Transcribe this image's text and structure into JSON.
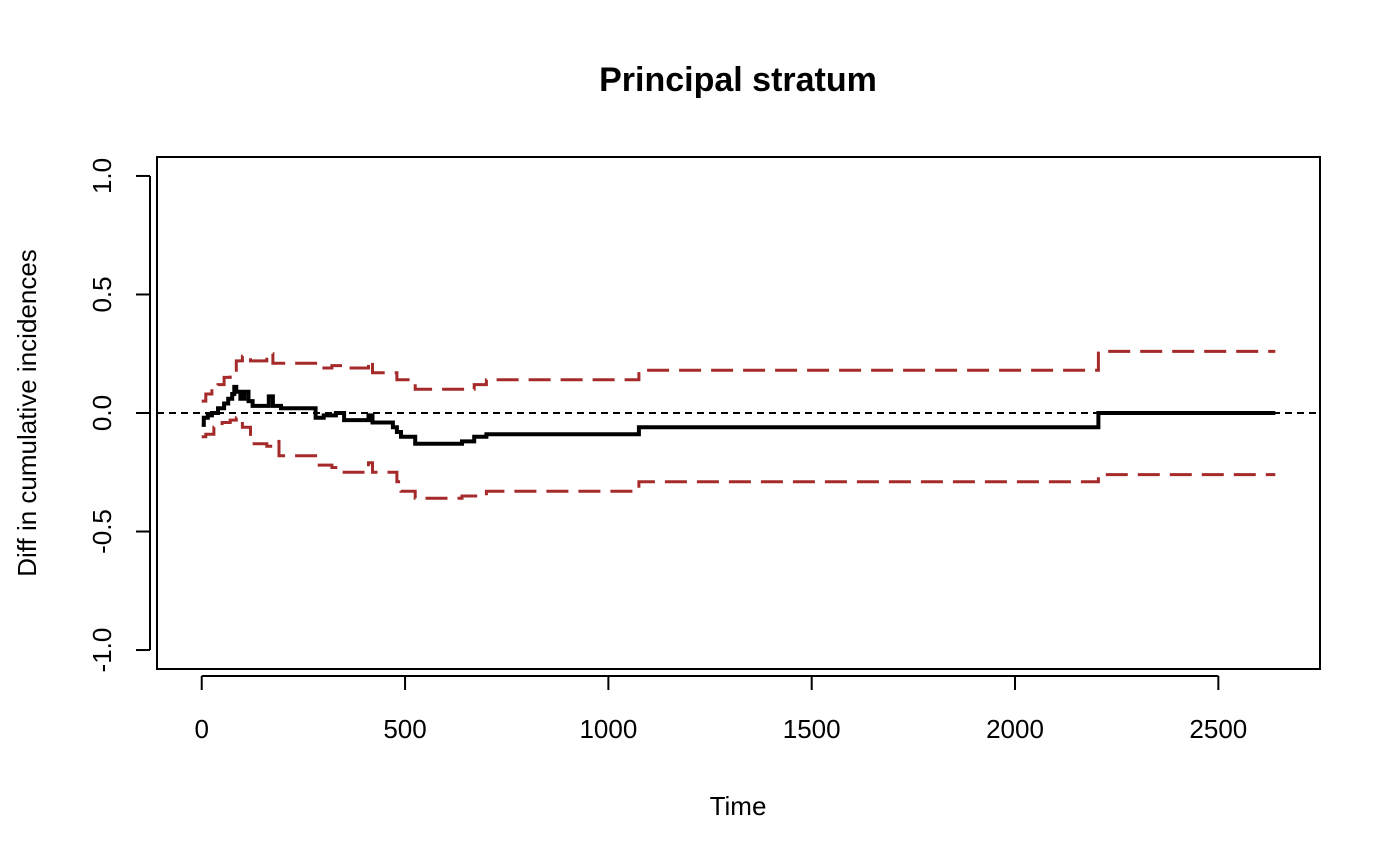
{
  "chart_data": {
    "type": "line",
    "title": "Principal stratum",
    "xlabel": "Time",
    "ylabel": "Diff in cumulative incidences",
    "xlim": [
      -110,
      2750
    ],
    "ylim": [
      -1.08,
      1.08
    ],
    "x_ticks": [
      0,
      500,
      1000,
      1500,
      2000,
      2500
    ],
    "x_tick_labels": [
      "0",
      "500",
      "1000",
      "1500",
      "2000",
      "2500"
    ],
    "y_ticks": [
      -1.0,
      -0.5,
      0.0,
      0.5,
      1.0
    ],
    "y_tick_labels": [
      "-1.0",
      "-0.5",
      "0.0",
      "0.5",
      "1.0"
    ],
    "grid": false,
    "legend": "none",
    "reference_line": {
      "y": 0,
      "style": "dashed",
      "color": "#000000"
    },
    "series": [
      {
        "role": "estimate",
        "color": "#000000",
        "style": "solid",
        "step": true,
        "x": [
          0,
          5,
          15,
          25,
          40,
          55,
          65,
          75,
          80,
          85,
          95,
          105,
          115,
          125,
          150,
          165,
          175,
          195,
          280,
          300,
          330,
          350,
          410,
          420,
          470,
          480,
          490,
          525,
          640,
          670,
          700,
          1075,
          2205,
          2640
        ],
        "y": [
          -0.05,
          -0.02,
          -0.01,
          0.0,
          0.02,
          0.04,
          0.06,
          0.08,
          0.11,
          0.09,
          0.06,
          0.09,
          0.05,
          0.03,
          0.03,
          0.07,
          0.03,
          0.02,
          -0.02,
          -0.01,
          0.0,
          -0.03,
          -0.01,
          -0.04,
          -0.06,
          -0.08,
          -0.1,
          -0.13,
          -0.12,
          -0.1,
          -0.09,
          -0.06,
          0.0,
          0.0
        ]
      },
      {
        "role": "upper-bound",
        "color": "#A52A2A",
        "style": "dashed",
        "step": true,
        "x": [
          0,
          10,
          25,
          40,
          55,
          70,
          85,
          100,
          120,
          160,
          175,
          190,
          280,
          320,
          350,
          410,
          420,
          480,
          525,
          640,
          670,
          700,
          1075,
          2205,
          2640
        ],
        "y": [
          0.05,
          0.08,
          0.1,
          0.12,
          0.15,
          0.18,
          0.22,
          0.24,
          0.22,
          0.25,
          0.21,
          0.21,
          0.19,
          0.2,
          0.19,
          0.22,
          0.17,
          0.14,
          0.1,
          0.1,
          0.12,
          0.14,
          0.18,
          0.26,
          0.26
        ]
      },
      {
        "role": "lower-bound",
        "color": "#A52A2A",
        "style": "dashed",
        "step": true,
        "x": [
          0,
          10,
          30,
          50,
          70,
          85,
          100,
          120,
          160,
          175,
          190,
          280,
          320,
          350,
          410,
          420,
          480,
          490,
          525,
          640,
          700,
          1075,
          2205,
          2640
        ],
        "y": [
          -0.1,
          -0.09,
          -0.06,
          -0.04,
          -0.03,
          -0.02,
          -0.06,
          -0.13,
          -0.14,
          -0.12,
          -0.18,
          -0.22,
          -0.23,
          -0.25,
          -0.21,
          -0.25,
          -0.29,
          -0.33,
          -0.36,
          -0.35,
          -0.33,
          -0.29,
          -0.26,
          -0.26
        ]
      }
    ]
  }
}
